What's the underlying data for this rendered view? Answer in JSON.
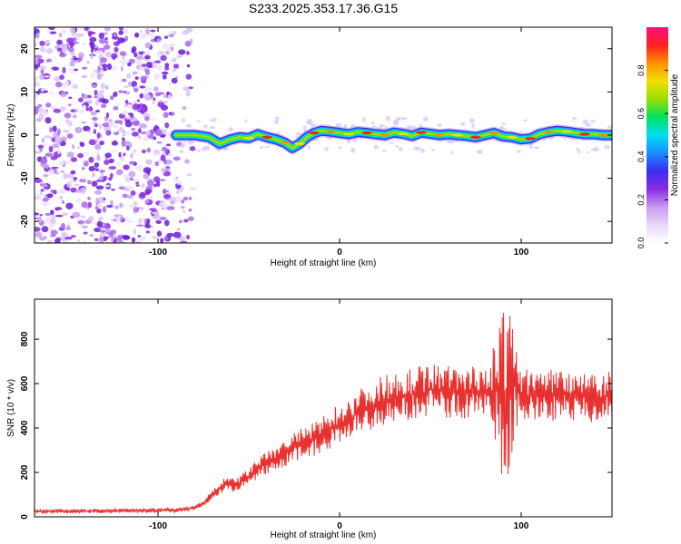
{
  "title": "S233.2025.353.17.36.G15",
  "colors": {
    "snr_line": "#e8312f",
    "noise": "#8a2be2",
    "axes": "#000000",
    "background": "#ffffff"
  },
  "chart_data": [
    {
      "type": "heatmap",
      "name": "spectrogram",
      "xlabel": "Height of straight line (km)",
      "ylabel": "Frequency (Hz)",
      "xlim": [
        -168,
        150
      ],
      "ylim": [
        -25,
        25
      ],
      "xticks": [
        -100,
        0,
        100
      ],
      "xtick_labels": [
        "-100",
        "0",
        "100"
      ],
      "yticks": [
        -20,
        -10,
        0,
        10,
        20
      ],
      "ytick_labels": [
        "-20",
        "-10",
        "0",
        "10",
        "20"
      ],
      "noise_region_x": [
        -168,
        -80
      ],
      "signal_start_x": -90,
      "ridge": {
        "x": [
          -90,
          -80,
          -72,
          -66,
          -60,
          -55,
          -50,
          -45,
          -40,
          -35,
          -30,
          -26,
          -22,
          -18,
          -14,
          -10,
          -5,
          0,
          5,
          10,
          15,
          20,
          25,
          30,
          35,
          40,
          45,
          50,
          55,
          60,
          65,
          70,
          75,
          80,
          85,
          90,
          95,
          100,
          105,
          110,
          115,
          120,
          125,
          130,
          135,
          140,
          145,
          150
        ],
        "y": [
          0,
          0,
          -0.5,
          -2,
          -1,
          -0.5,
          -0.7,
          0.2,
          -0.5,
          -1,
          -1.8,
          -3,
          -2,
          -0.5,
          0.5,
          1,
          0.8,
          0.5,
          0.2,
          0.7,
          0.5,
          0.2,
          0,
          0.6,
          0.3,
          -0.2,
          0.6,
          0.3,
          0,
          0.2,
          0,
          -0.2,
          -0.5,
          0,
          0.5,
          -0.3,
          -0.5,
          -1,
          -0.8,
          0.2,
          0.7,
          1,
          0.8,
          0.5,
          0.2,
          0.2,
          0,
          0
        ]
      },
      "colorbar": {
        "label": "Normalized spectral amplitude",
        "range": [
          0,
          1
        ],
        "ticks": [
          0.0,
          0.2,
          0.4,
          0.6,
          0.8
        ],
        "tick_labels": [
          "0.0",
          "0.2",
          "0.4",
          "0.6",
          "0.8"
        ],
        "colormap": [
          "#ffffff",
          "#e8d8f8",
          "#c89af0",
          "#8a2be2",
          "#3a2cf0",
          "#1a8cff",
          "#00e0f0",
          "#00e060",
          "#9ae000",
          "#f0e000",
          "#ff9000",
          "#ff2020",
          "#ff1080"
        ]
      }
    },
    {
      "type": "line",
      "name": "snr",
      "xlabel": "Height of straight line (km)",
      "ylabel": "SNR (10 * v/v)",
      "xlim": [
        -168,
        150
      ],
      "ylim": [
        0,
        980
      ],
      "xticks": [
        -100,
        0,
        100
      ],
      "xtick_labels": [
        "-100",
        "0",
        "100"
      ],
      "yticks": [
        0,
        200,
        400,
        600,
        800
      ],
      "ytick_labels": [
        "0",
        "200",
        "400",
        "600",
        "800"
      ],
      "series": [
        {
          "name": "SNR",
          "x": [
            -168,
            -150,
            -130,
            -110,
            -90,
            -80,
            -75,
            -70,
            -66,
            -62,
            -58,
            -54,
            -50,
            -45,
            -40,
            -36,
            -32,
            -28,
            -24,
            -20,
            -16,
            -12,
            -8,
            -4,
            0,
            5,
            10,
            15,
            20,
            25,
            30,
            35,
            40,
            45,
            50,
            55,
            60,
            65,
            70,
            75,
            80,
            84,
            86,
            88,
            90,
            92,
            94,
            96,
            98,
            100,
            105,
            110,
            115,
            120,
            125,
            130,
            135,
            140,
            145,
            150
          ],
          "y": [
            25,
            25,
            27,
            28,
            30,
            40,
            60,
            100,
            130,
            150,
            140,
            160,
            180,
            220,
            240,
            260,
            280,
            300,
            320,
            330,
            340,
            360,
            380,
            400,
            420,
            440,
            470,
            490,
            510,
            525,
            540,
            545,
            550,
            560,
            570,
            575,
            560,
            555,
            560,
            565,
            560,
            570,
            590,
            560,
            450,
            550,
            560,
            620,
            580,
            560,
            540,
            545,
            550,
            555,
            550,
            548,
            550,
            545,
            540,
            545
          ]
        }
      ]
    }
  ]
}
